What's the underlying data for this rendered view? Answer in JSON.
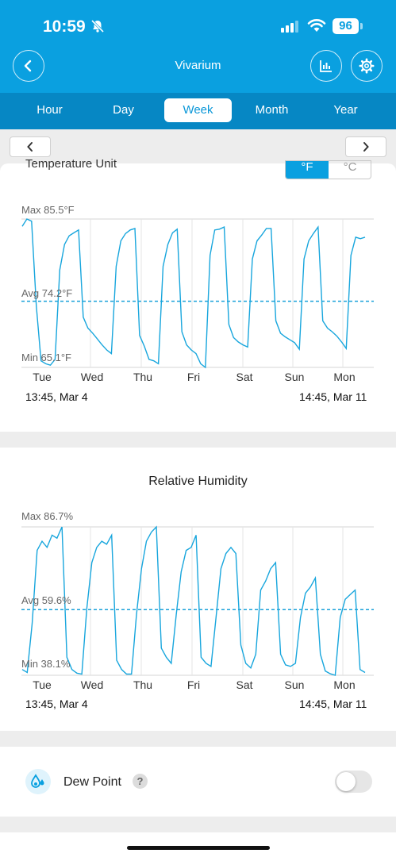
{
  "status_bar": {
    "time": "10:59",
    "battery": "96"
  },
  "header": {
    "title": "Vivarium"
  },
  "tabs": [
    "Hour",
    "Day",
    "Week",
    "Month",
    "Year"
  ],
  "active_tab": "Week",
  "temperature": {
    "section_label": "Temperature Unit",
    "unit_f": "°F",
    "unit_c": "°C",
    "selected_unit": "°F",
    "max_label": "Max 85.5°F",
    "avg_label": "Avg 74.2°F",
    "min_label": "Min 65.1°F",
    "days": [
      "Tue",
      "Wed",
      "Thu",
      "Fri",
      "Sat",
      "Sun",
      "Mon"
    ],
    "start_time": "13:45,  Mar 4",
    "end_time": "14:45,  Mar 11"
  },
  "humidity": {
    "title": "Relative Humidity",
    "max_label": "Max 86.7%",
    "avg_label": "Avg 59.6%",
    "min_label": "Min 38.1%",
    "days": [
      "Tue",
      "Wed",
      "Thu",
      "Fri",
      "Sat",
      "Sun",
      "Mon"
    ],
    "start_time": "13:45,  Mar 4",
    "end_time": "14:45,  Mar 11"
  },
  "dew_point": {
    "label": "Dew Point",
    "help": "?",
    "enabled": false
  },
  "colors": {
    "accent": "#0aa0e0",
    "tab_bar": "#0687c4",
    "series": "#18a6dd"
  },
  "chart_data": [
    {
      "type": "line",
      "series": [
        {
          "values": [
            84.5,
            85.5,
            85.2,
            73.5,
            66.0,
            65.6,
            65.4,
            66.2,
            78.5,
            82.0,
            83.2,
            83.6,
            84.0,
            72.0,
            70.5,
            69.8,
            69.0,
            68.2,
            67.5,
            67.0,
            79.0,
            82.5,
            83.5,
            84.0,
            84.2,
            69.5,
            68.0,
            66.2,
            66.0,
            65.6,
            79.0,
            82.0,
            83.6,
            84.1,
            70.0,
            68.2,
            67.5,
            67.0,
            65.6,
            65.1,
            80.5,
            84.0,
            84.1,
            84.4,
            71.0,
            69.2,
            68.6,
            68.2,
            67.9,
            80.0,
            82.5,
            83.3,
            84.2,
            84.2,
            71.5,
            69.8,
            69.3,
            68.9,
            68.5,
            67.6,
            80.0,
            82.5,
            83.5,
            84.4,
            71.5,
            70.5,
            70.0,
            69.4,
            68.6,
            67.7,
            80.5,
            83.0,
            82.8,
            83.0
          ]
        }
      ],
      "ylim": [
        65.1,
        85.5
      ],
      "avg": 74.2
    },
    {
      "type": "line",
      "series": [
        {
          "values": [
            40.0,
            39.0,
            55.0,
            79.0,
            82.0,
            80.0,
            84.0,
            83.0,
            86.7,
            44.0,
            40.0,
            38.8,
            38.5,
            60.0,
            75.0,
            80.0,
            82.0,
            81.0,
            84.0,
            43.0,
            40.0,
            38.5,
            38.5,
            58.0,
            73.0,
            82.0,
            85.0,
            86.7,
            47.0,
            44.0,
            42.0,
            58.0,
            72.0,
            79.0,
            80.0,
            84.0,
            44.0,
            42.0,
            41.0,
            57.0,
            73.0,
            78.0,
            80.0,
            78.0,
            48.0,
            42.0,
            40.5,
            45.0,
            66.0,
            69.0,
            73.0,
            75.0,
            45.0,
            41.5,
            41.0,
            42.0,
            57.0,
            65.0,
            67.0,
            70.0,
            45.0,
            39.5,
            38.6,
            38.1,
            57.0,
            63.0,
            64.5,
            66.0,
            40.0,
            39.0
          ]
        }
      ],
      "ylim": [
        38.1,
        86.7
      ],
      "avg": 59.6
    }
  ]
}
